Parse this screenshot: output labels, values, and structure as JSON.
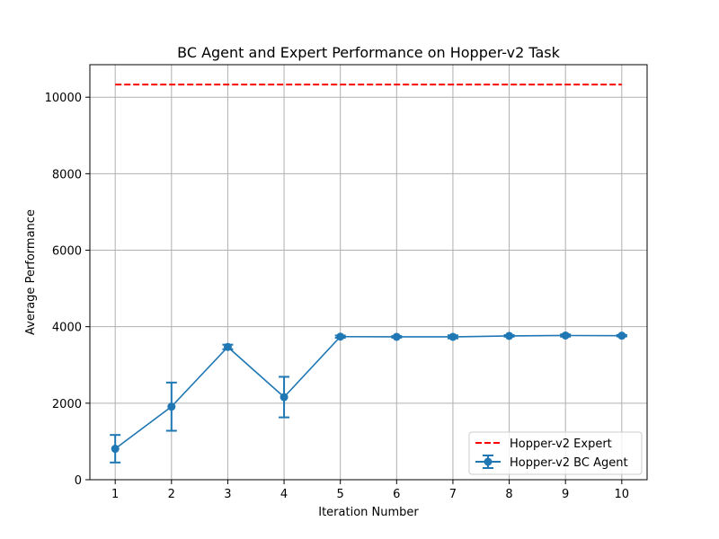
{
  "chart_data": {
    "type": "line",
    "title": "BC Agent and Expert Performance on Hopper-v2 Task",
    "xlabel": "Iteration Number",
    "ylabel": "Average Performance",
    "x": [
      1,
      2,
      3,
      4,
      5,
      6,
      7,
      8,
      9,
      10
    ],
    "xlim": [
      0.55,
      10.45
    ],
    "ylim": [
      0,
      10850
    ],
    "xticks": [
      1,
      2,
      3,
      4,
      5,
      6,
      7,
      8,
      9,
      10
    ],
    "yticks": [
      0,
      2000,
      4000,
      6000,
      8000,
      10000
    ],
    "grid": true,
    "legend_position": "lower-right",
    "series": [
      {
        "name": "Hopper-v2 Expert",
        "style": "dashed",
        "color": "#ff0000",
        "values": [
          10330,
          10330,
          10330,
          10330,
          10330,
          10330,
          10330,
          10330,
          10330,
          10330
        ]
      },
      {
        "name": "Hopper-v2 BC Agent",
        "style": "solid-marker-errorbar",
        "color": "#1f77b4",
        "values": [
          810,
          1910,
          3470,
          2160,
          3740,
          3735,
          3735,
          3760,
          3770,
          3765
        ],
        "errors": [
          360,
          630,
          60,
          530,
          30,
          20,
          40,
          20,
          30,
          20
        ]
      }
    ]
  }
}
